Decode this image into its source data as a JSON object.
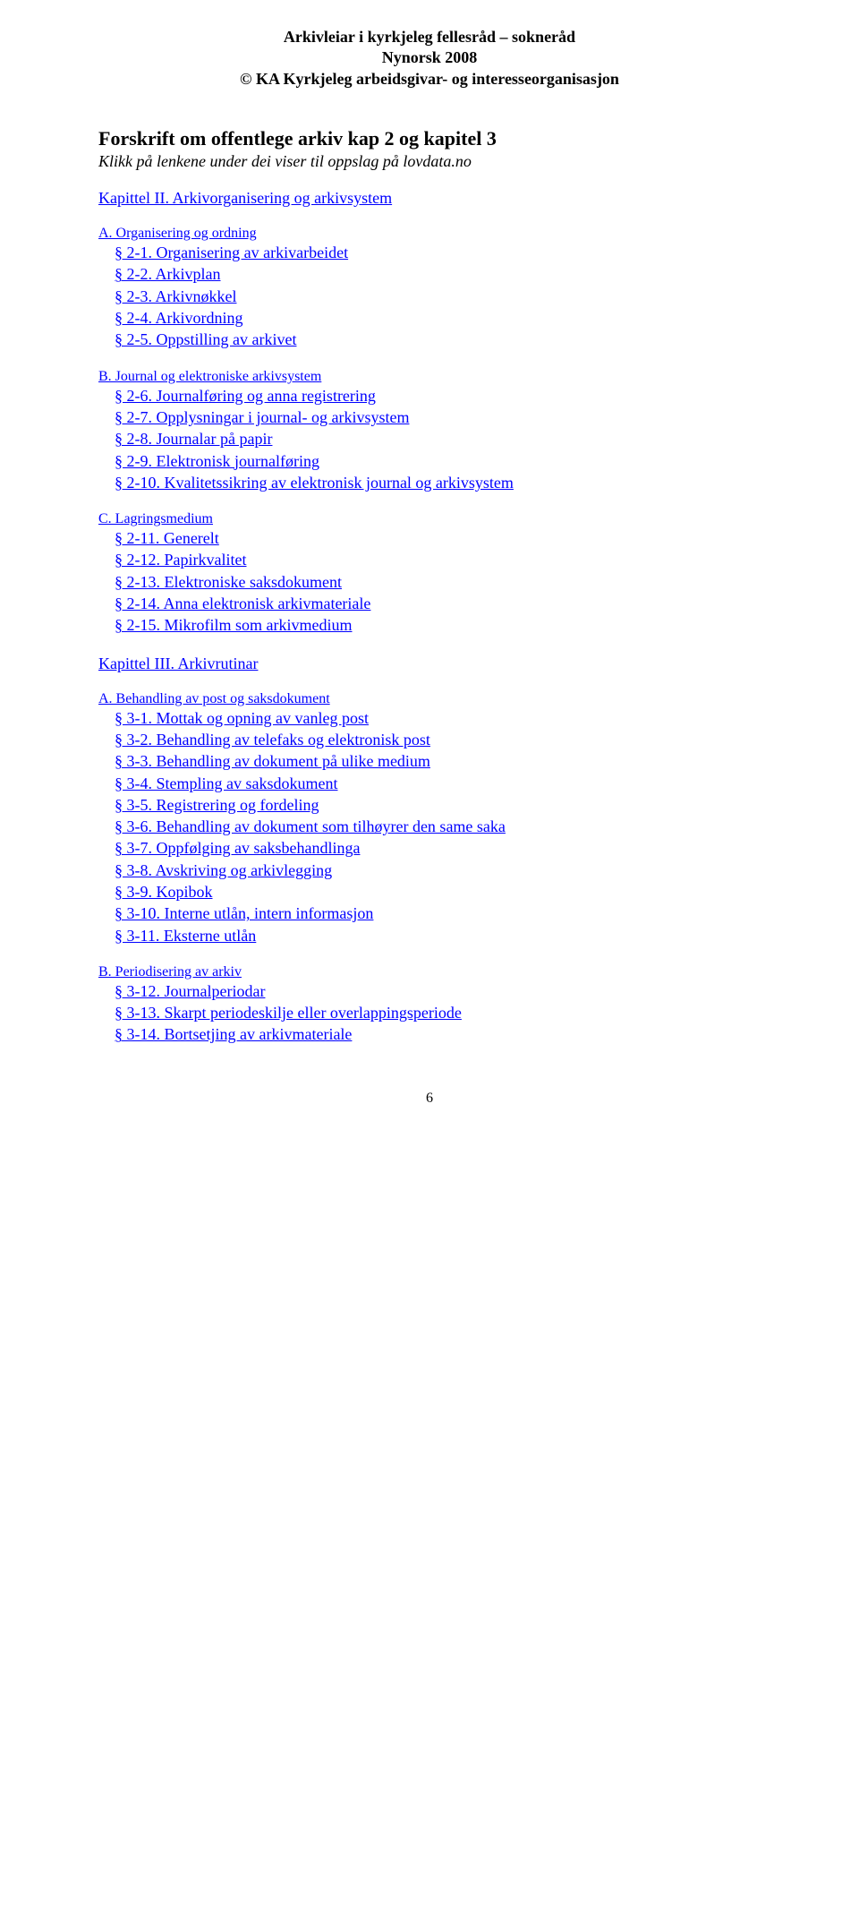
{
  "header": {
    "line1": "Arkivleiar i kyrkjeleg fellesråd – sokneråd",
    "line2": "Nynorsk 2008",
    "line3": "© KA Kyrkjeleg arbeidsgivar- og interesseorganisasjon"
  },
  "title": "Forskrift om offentlege arkiv kap 2 og kapitel 3",
  "subtitle": "Klikk på lenkene under dei viser til oppslag på lovdata.no",
  "chapterII": "Kapittel II. Arkivorganisering og arkivsystem",
  "A": {
    "head": "A. Organisering og ordning",
    "items": [
      "§ 2-1. Organisering av arkivarbeidet",
      "§ 2-2. Arkivplan",
      "§ 2-3. Arkivnøkkel",
      "§ 2-4. Arkivordning",
      "§ 2-5. Oppstilling av arkivet"
    ]
  },
  "B": {
    "head": "B. Journal og elektroniske arkivsystem",
    "items": [
      "§ 2-6. Journalføring og anna registrering",
      "§ 2-7. Opplysningar i journal- og arkivsystem",
      "§ 2-8. Journalar på papir",
      "§ 2-9. Elektronisk journalføring",
      "§ 2-10. Kvalitetssikring av elektronisk journal og arkivsystem"
    ]
  },
  "C": {
    "head": "C. Lagringsmedium",
    "items": [
      "§ 2-11. Generelt",
      "§ 2-12. Papirkvalitet",
      "§ 2-13. Elektroniske saksdokument",
      "§ 2-14. Anna elektronisk arkivmateriale",
      "§ 2-15. Mikrofilm som arkivmedium"
    ]
  },
  "chapterIII": "Kapittel III. Arkivrutinar",
  "A3": {
    "head": "A. Behandling av post og saksdokument",
    "items": [
      "§ 3-1. Mottak og opning av vanleg post",
      "§ 3-2. Behandling av telefaks og elektronisk post",
      "§ 3-3. Behandling av dokument på ulike medium",
      "§ 3-4. Stempling av saksdokument",
      "§ 3-5. Registrering og fordeling",
      "§ 3-6. Behandling av dokument som tilhøyrer den same saka",
      "§ 3-7. Oppfølging av saksbehandlinga",
      "§ 3-8. Avskriving og arkivlegging",
      "§ 3-9. Kopibok",
      "§ 3-10. Interne utlån, intern informasjon",
      "§ 3-11. Eksterne utlån"
    ]
  },
  "B3": {
    "head": "B. Periodisering av arkiv",
    "items": [
      "§ 3-12. Journalperiodar",
      "§ 3-13. Skarpt periodeskilje eller overlappingsperiode",
      "§ 3-14. Bortsetjing av arkivmateriale"
    ]
  },
  "pagenum": "6",
  "colors": {
    "link": "#0000ff",
    "text": "#000000",
    "background": "#ffffff"
  }
}
